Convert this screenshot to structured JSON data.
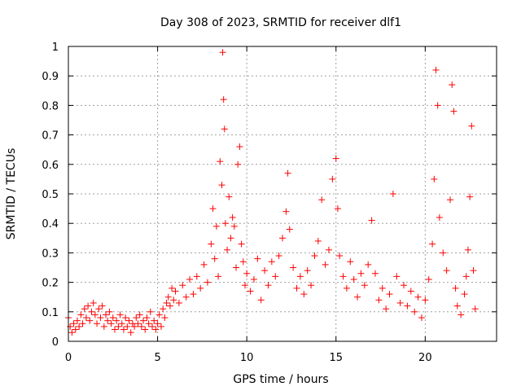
{
  "chart_data": {
    "type": "scatter",
    "title": "Day 308 of 2023, SRMTID for receiver dlf1",
    "xlabel": "GPS time / hours",
    "ylabel": "SRMTID / TECUs",
    "xlim": [
      0,
      24
    ],
    "ylim": [
      0,
      1
    ],
    "xticks": [
      0,
      5,
      10,
      15,
      20
    ],
    "xtick_labels": [
      "0",
      "5",
      "10",
      "15",
      "20"
    ],
    "yticks": [
      0,
      0.1,
      0.2,
      0.3,
      0.4,
      0.5,
      0.6,
      0.7,
      0.8,
      0.9,
      1
    ],
    "ytick_labels": [
      "0",
      "0.1",
      "0.2",
      "0.3",
      "0.4",
      "0.5",
      "0.6",
      "0.7",
      "0.8",
      "0.9",
      "1"
    ],
    "grid": true,
    "marker": "+",
    "color": "#ff0000",
    "series": [
      {
        "name": "SRMTID",
        "points": [
          [
            0.0,
            0.08
          ],
          [
            0.1,
            0.05
          ],
          [
            0.2,
            0.03
          ],
          [
            0.3,
            0.06
          ],
          [
            0.4,
            0.04
          ],
          [
            0.5,
            0.07
          ],
          [
            0.6,
            0.05
          ],
          [
            0.7,
            0.09
          ],
          [
            0.8,
            0.06
          ],
          [
            0.9,
            0.11
          ],
          [
            1.0,
            0.08
          ],
          [
            1.1,
            0.12
          ],
          [
            1.2,
            0.07
          ],
          [
            1.3,
            0.1
          ],
          [
            1.4,
            0.13
          ],
          [
            1.5,
            0.09
          ],
          [
            1.6,
            0.06
          ],
          [
            1.7,
            0.11
          ],
          [
            1.8,
            0.08
          ],
          [
            1.9,
            0.12
          ],
          [
            2.0,
            0.05
          ],
          [
            2.1,
            0.09
          ],
          [
            2.2,
            0.07
          ],
          [
            2.3,
            0.1
          ],
          [
            2.4,
            0.06
          ],
          [
            2.5,
            0.08
          ],
          [
            2.6,
            0.04
          ],
          [
            2.7,
            0.07
          ],
          [
            2.8,
            0.05
          ],
          [
            2.9,
            0.09
          ],
          [
            3.0,
            0.06
          ],
          [
            3.1,
            0.04
          ],
          [
            3.2,
            0.08
          ],
          [
            3.3,
            0.05
          ],
          [
            3.4,
            0.07
          ],
          [
            3.5,
            0.03
          ],
          [
            3.6,
            0.06
          ],
          [
            3.7,
            0.05
          ],
          [
            3.8,
            0.08
          ],
          [
            3.9,
            0.06
          ],
          [
            4.0,
            0.09
          ],
          [
            4.1,
            0.05
          ],
          [
            4.2,
            0.07
          ],
          [
            4.3,
            0.04
          ],
          [
            4.4,
            0.08
          ],
          [
            4.5,
            0.06
          ],
          [
            4.6,
            0.1
          ],
          [
            4.7,
            0.05
          ],
          [
            4.8,
            0.07
          ],
          [
            4.9,
            0.04
          ],
          [
            5.0,
            0.06
          ],
          [
            5.1,
            0.09
          ],
          [
            5.2,
            0.05
          ],
          [
            5.3,
            0.11
          ],
          [
            5.4,
            0.08
          ],
          [
            5.5,
            0.13
          ],
          [
            5.6,
            0.15
          ],
          [
            5.7,
            0.12
          ],
          [
            5.8,
            0.18
          ],
          [
            5.9,
            0.14
          ],
          [
            6.0,
            0.17
          ],
          [
            6.2,
            0.13
          ],
          [
            6.4,
            0.19
          ],
          [
            6.6,
            0.15
          ],
          [
            6.8,
            0.21
          ],
          [
            7.0,
            0.16
          ],
          [
            7.2,
            0.22
          ],
          [
            7.4,
            0.18
          ],
          [
            7.6,
            0.26
          ],
          [
            7.8,
            0.2
          ],
          [
            8.0,
            0.33
          ],
          [
            8.1,
            0.45
          ],
          [
            8.2,
            0.28
          ],
          [
            8.3,
            0.39
          ],
          [
            8.4,
            0.22
          ],
          [
            8.5,
            0.61
          ],
          [
            8.6,
            0.53
          ],
          [
            8.65,
            0.98
          ],
          [
            8.7,
            0.82
          ],
          [
            8.75,
            0.72
          ],
          [
            8.8,
            0.4
          ],
          [
            8.9,
            0.31
          ],
          [
            9.0,
            0.49
          ],
          [
            9.1,
            0.35
          ],
          [
            9.2,
            0.42
          ],
          [
            9.3,
            0.39
          ],
          [
            9.4,
            0.25
          ],
          [
            9.5,
            0.6
          ],
          [
            9.6,
            0.66
          ],
          [
            9.7,
            0.33
          ],
          [
            9.8,
            0.27
          ],
          [
            9.9,
            0.19
          ],
          [
            10.0,
            0.23
          ],
          [
            10.2,
            0.17
          ],
          [
            10.4,
            0.21
          ],
          [
            10.6,
            0.28
          ],
          [
            10.8,
            0.14
          ],
          [
            11.0,
            0.24
          ],
          [
            11.2,
            0.19
          ],
          [
            11.4,
            0.27
          ],
          [
            11.6,
            0.22
          ],
          [
            11.8,
            0.29
          ],
          [
            12.0,
            0.35
          ],
          [
            12.2,
            0.44
          ],
          [
            12.3,
            0.57
          ],
          [
            12.4,
            0.38
          ],
          [
            12.6,
            0.25
          ],
          [
            12.8,
            0.18
          ],
          [
            13.0,
            0.22
          ],
          [
            13.2,
            0.16
          ],
          [
            13.4,
            0.24
          ],
          [
            13.6,
            0.19
          ],
          [
            13.8,
            0.29
          ],
          [
            14.0,
            0.34
          ],
          [
            14.2,
            0.48
          ],
          [
            14.4,
            0.26
          ],
          [
            14.6,
            0.31
          ],
          [
            14.8,
            0.55
          ],
          [
            15.0,
            0.62
          ],
          [
            15.1,
            0.45
          ],
          [
            15.2,
            0.29
          ],
          [
            15.4,
            0.22
          ],
          [
            15.6,
            0.18
          ],
          [
            15.8,
            0.27
          ],
          [
            16.0,
            0.21
          ],
          [
            16.2,
            0.15
          ],
          [
            16.4,
            0.23
          ],
          [
            16.6,
            0.19
          ],
          [
            16.8,
            0.26
          ],
          [
            17.0,
            0.41
          ],
          [
            17.2,
            0.23
          ],
          [
            17.4,
            0.14
          ],
          [
            17.6,
            0.18
          ],
          [
            17.8,
            0.11
          ],
          [
            18.0,
            0.16
          ],
          [
            18.2,
            0.5
          ],
          [
            18.4,
            0.22
          ],
          [
            18.6,
            0.13
          ],
          [
            18.8,
            0.19
          ],
          [
            19.0,
            0.12
          ],
          [
            19.2,
            0.17
          ],
          [
            19.4,
            0.1
          ],
          [
            19.6,
            0.15
          ],
          [
            19.8,
            0.08
          ],
          [
            20.0,
            0.14
          ],
          [
            20.2,
            0.21
          ],
          [
            20.4,
            0.33
          ],
          [
            20.5,
            0.55
          ],
          [
            20.6,
            0.92
          ],
          [
            20.7,
            0.8
          ],
          [
            20.8,
            0.42
          ],
          [
            21.0,
            0.3
          ],
          [
            21.2,
            0.24
          ],
          [
            21.4,
            0.48
          ],
          [
            21.5,
            0.87
          ],
          [
            21.6,
            0.78
          ],
          [
            21.7,
            0.18
          ],
          [
            21.8,
            0.12
          ],
          [
            22.0,
            0.09
          ],
          [
            22.2,
            0.16
          ],
          [
            22.3,
            0.22
          ],
          [
            22.4,
            0.31
          ],
          [
            22.5,
            0.49
          ],
          [
            22.6,
            0.73
          ],
          [
            22.7,
            0.24
          ],
          [
            22.8,
            0.11
          ]
        ]
      }
    ]
  }
}
